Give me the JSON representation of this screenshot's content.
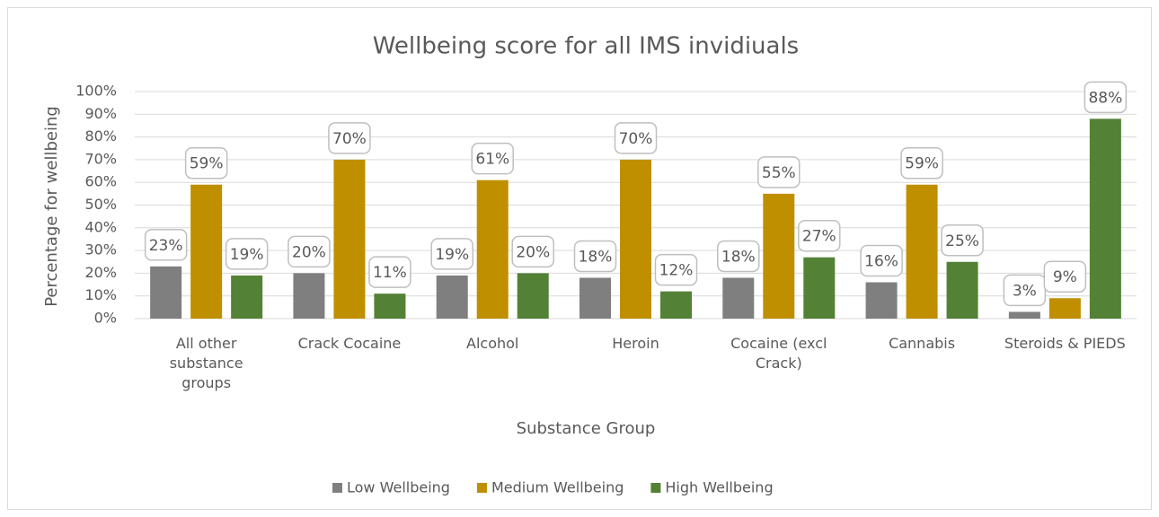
{
  "chart_data": {
    "type": "bar",
    "title": "Wellbeing score for all IMS invidiuals",
    "x_label": "Substance Group",
    "y_label": "Percentage for wellbeing",
    "categories": [
      "All other substance groups",
      "Crack Cocaine",
      "Alcohol",
      "Heroin",
      "Cocaine (excl Crack)",
      "Cannabis",
      "Steroids & PIEDS"
    ],
    "series": [
      {
        "name": "Low Wellbeing",
        "color": "#7f7f7f",
        "values": [
          23,
          20,
          19,
          18,
          18,
          16,
          3
        ],
        "value_labels": [
          "23%",
          "20%",
          "19%",
          "18%",
          "18%",
          "16%",
          "3%"
        ]
      },
      {
        "name": "Medium Wellbeing",
        "color": "#bf8f00",
        "values": [
          59,
          70,
          61,
          70,
          55,
          59,
          9
        ],
        "value_labels": [
          "59%",
          "70%",
          "61%",
          "70%",
          "55%",
          "59%",
          "9%"
        ]
      },
      {
        "name": "High Wellbeing",
        "color": "#538135",
        "values": [
          19,
          11,
          20,
          12,
          27,
          25,
          88
        ],
        "value_labels": [
          "19%",
          "11%",
          "20%",
          "12%",
          "27%",
          "25%",
          "88%"
        ]
      }
    ],
    "ylim": [
      0,
      100
    ],
    "yticks": [
      {
        "value": 0,
        "label": "0%"
      },
      {
        "value": 10,
        "label": "10%"
      },
      {
        "value": 20,
        "label": "20%"
      },
      {
        "value": 30,
        "label": "30%"
      },
      {
        "value": 40,
        "label": "40%"
      },
      {
        "value": 50,
        "label": "50%"
      },
      {
        "value": 60,
        "label": "60%"
      },
      {
        "value": 70,
        "label": "70%"
      },
      {
        "value": 80,
        "label": "80%"
      },
      {
        "value": 90,
        "label": "90%"
      },
      {
        "value": 100,
        "label": "100%"
      }
    ],
    "grid": true,
    "legend": "bottom"
  }
}
